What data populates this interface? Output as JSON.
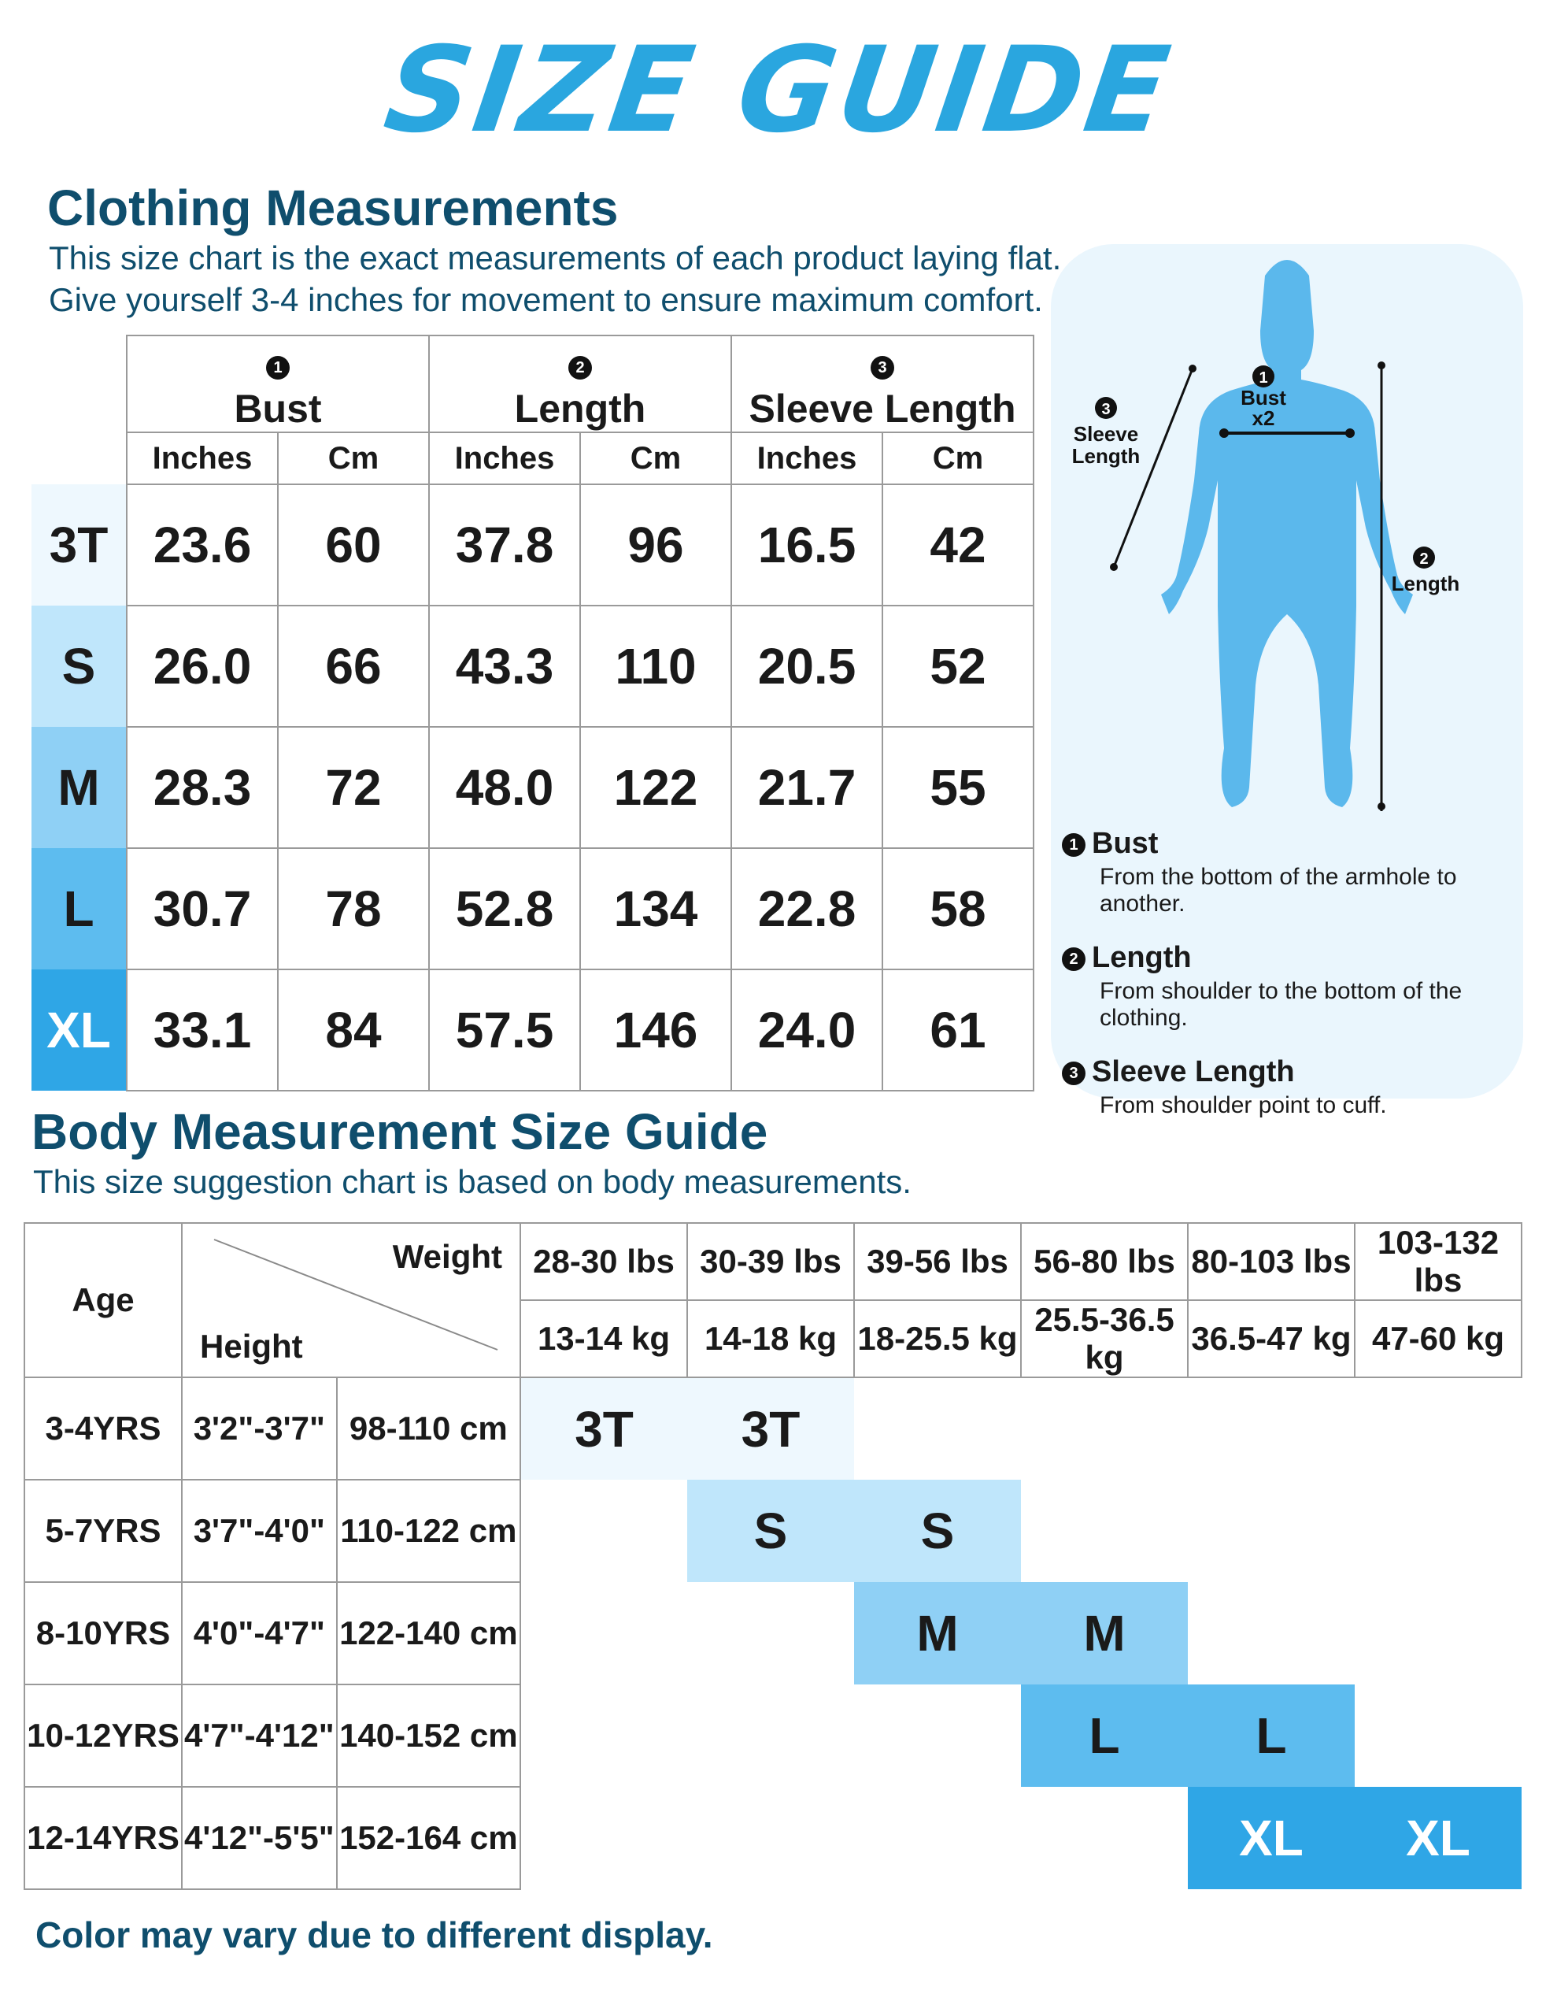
{
  "title": "SIZE GUIDE",
  "clothing": {
    "heading": "Clothing Measurements",
    "subtitle_line1": "This size chart is the exact measurements of each product laying flat.",
    "subtitle_line2": "Give yourself 3-4 inches for movement to ensure maximum comfort.",
    "groups": [
      {
        "num": "1",
        "label": "Bust"
      },
      {
        "num": "2",
        "label": "Length"
      },
      {
        "num": "3",
        "label": "Sleeve Length"
      }
    ],
    "units": [
      "Inches",
      "Cm",
      "Inches",
      "Cm",
      "Inches",
      "Cm"
    ],
    "rows": [
      {
        "size": "3T",
        "values": [
          "23.6",
          "60",
          "37.8",
          "96",
          "16.5",
          "42"
        ]
      },
      {
        "size": "S",
        "values": [
          "26.0",
          "66",
          "43.3",
          "110",
          "20.5",
          "52"
        ]
      },
      {
        "size": "M",
        "values": [
          "28.3",
          "72",
          "48.0",
          "122",
          "21.7",
          "55"
        ]
      },
      {
        "size": "L",
        "values": [
          "30.7",
          "78",
          "52.8",
          "134",
          "22.8",
          "58"
        ]
      },
      {
        "size": "XL",
        "values": [
          "33.1",
          "84",
          "57.5",
          "146",
          "24.0",
          "61"
        ]
      }
    ]
  },
  "figure": {
    "sleeve_label_line1": "Sleeve",
    "sleeve_label_line2": "Length",
    "bust_label_line1": "Bust",
    "bust_label_line2": "x2",
    "length_label": "Length",
    "num_bust": "1",
    "num_length": "2",
    "num_sleeve": "3",
    "figure_color": "#5bb8ec"
  },
  "legend": [
    {
      "num": "1",
      "title": "Bust",
      "desc": "From the bottom of the armhole to another."
    },
    {
      "num": "2",
      "title": "Length",
      "desc": "From shoulder to the bottom of the clothing."
    },
    {
      "num": "3",
      "title": "Sleeve Length",
      "desc": "From shoulder point to cuff."
    }
  ],
  "body": {
    "heading": "Body Measurement Size Guide",
    "subtitle": "This size suggestion chart is based on body measurements.",
    "age_label": "Age",
    "weight_label": "Weight",
    "height_label": "Height",
    "weights_lbs": [
      "28-30 lbs",
      "30-39 lbs",
      "39-56 lbs",
      "56-80 lbs",
      "80-103 lbs",
      "103-132 lbs"
    ],
    "weights_kg": [
      "13-14 kg",
      "14-18 kg",
      "18-25.5 kg",
      "25.5-36.5 kg",
      "36.5-47 kg",
      "47-60 kg"
    ],
    "rows": [
      {
        "age": "3-4YRS",
        "height_ft": "3'2\"-3'7\"",
        "height_cm": "98-110 cm",
        "start": 0,
        "size": "3T"
      },
      {
        "age": "5-7YRS",
        "height_ft": "3'7\"-4'0\"",
        "height_cm": "110-122 cm",
        "start": 1,
        "size": "S"
      },
      {
        "age": "8-10YRS",
        "height_ft": "4'0\"-4'7\"",
        "height_cm": "122-140 cm",
        "start": 2,
        "size": "M"
      },
      {
        "age": "10-12YRS",
        "height_ft": "4'7\"-4'12\"",
        "height_cm": "140-152 cm",
        "start": 3,
        "size": "L"
      },
      {
        "age": "12-14YRS",
        "height_ft": "4'12\"-5'5\"",
        "height_cm": "152-164 cm",
        "start": 4,
        "size": "XL"
      }
    ]
  },
  "size_colors": {
    "3T": "#eef8fe",
    "S": "#bfe6fb",
    "M": "#8fd0f5",
    "L": "#5dbcef",
    "XL": "#2fa6e6"
  },
  "size_text_colors": {
    "3T": "#1a1a1a",
    "S": "#1a1a1a",
    "M": "#1a1a1a",
    "L": "#1a1a1a",
    "XL": "#ffffff"
  },
  "footer": "Color may vary due to different display."
}
